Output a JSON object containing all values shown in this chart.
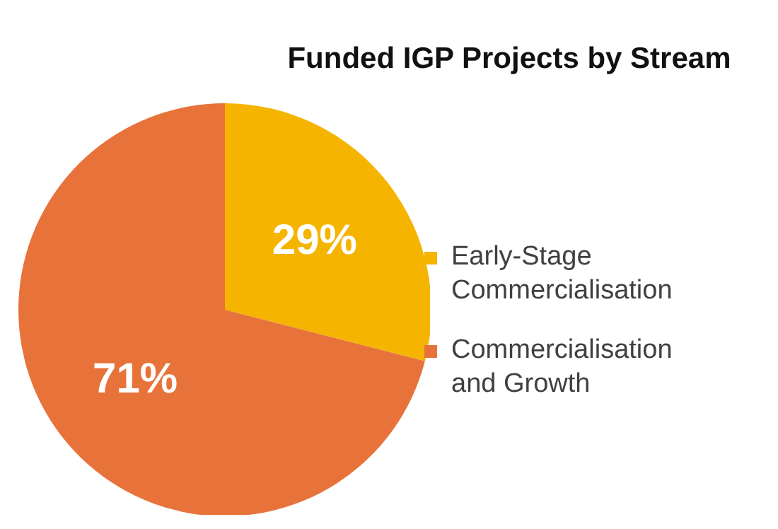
{
  "chart_data": {
    "type": "pie",
    "title": "Funded IGP Projects by Stream",
    "categories": [
      "Early-Stage Commercialisation",
      "Commercialisation and Growth"
    ],
    "values": [
      29,
      71
    ],
    "colors": [
      "#f5b400",
      "#e8733a"
    ],
    "value_labels": [
      "29%",
      "71%"
    ],
    "legend": "right"
  }
}
